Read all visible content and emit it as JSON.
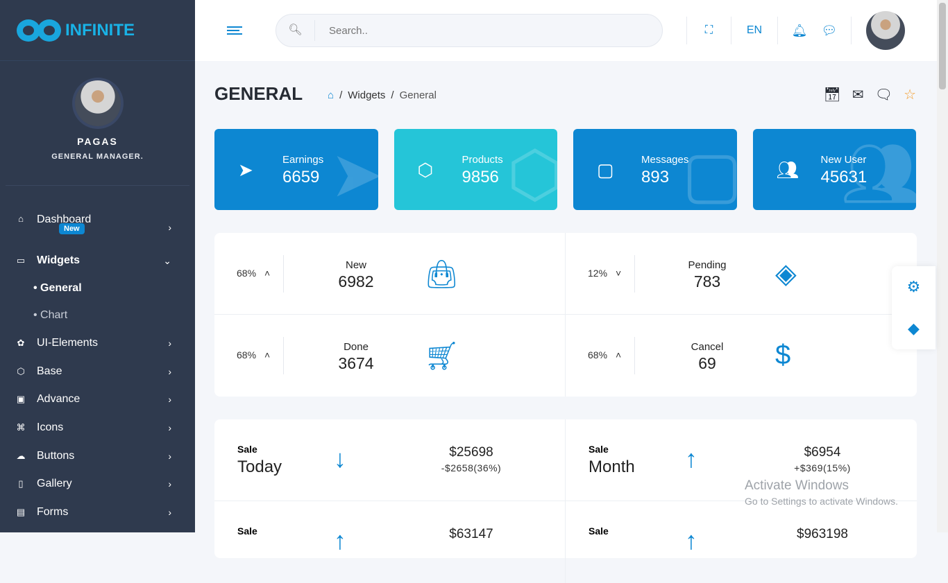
{
  "brand": {
    "name": "INFINITE"
  },
  "profile": {
    "name": "PAGAS",
    "role": "GENERAL MANAGER."
  },
  "sidebar": {
    "items": [
      {
        "label": "Dashboard",
        "icon": "home-icon",
        "badge": "New"
      },
      {
        "label": "Widgets",
        "icon": "monitor-icon",
        "expanded": true,
        "children": [
          {
            "label": "• General"
          },
          {
            "label": "• Chart"
          }
        ]
      },
      {
        "label": "UI-Elements",
        "icon": "flower-icon"
      },
      {
        "label": "Base",
        "icon": "box-icon"
      },
      {
        "label": "Advance",
        "icon": "folder-plus-icon"
      },
      {
        "label": "Icons",
        "icon": "command-icon"
      },
      {
        "label": "Buttons",
        "icon": "cloud-icon"
      },
      {
        "label": "Gallery",
        "icon": "book-icon"
      },
      {
        "label": "Forms",
        "icon": "file-icon"
      }
    ]
  },
  "header": {
    "search_placeholder": "Search..",
    "language": "EN"
  },
  "page": {
    "title": "GENERAL",
    "breadcrumb": [
      "Widgets",
      "General"
    ]
  },
  "cards": [
    {
      "label": "Earnings",
      "value": "6659"
    },
    {
      "label": "Products",
      "value": "9856"
    },
    {
      "label": "Messages",
      "value": "893"
    },
    {
      "label": "New User",
      "value": "45631"
    }
  ],
  "stats": [
    {
      "pct": "68%",
      "dir": "up",
      "label": "New",
      "value": "6982"
    },
    {
      "pct": "12%",
      "dir": "down",
      "label": "Pending",
      "value": "783"
    },
    {
      "pct": "68%",
      "dir": "up",
      "label": "Done",
      "value": "3674"
    },
    {
      "pct": "68%",
      "dir": "up",
      "label": "Cancel",
      "value": "69"
    }
  ],
  "sales": [
    {
      "label": "Sale",
      "period": "Today",
      "amount": "$25698",
      "change": "-$2658(36%)",
      "dir": "down"
    },
    {
      "label": "Sale",
      "period": "Month",
      "amount": "$6954",
      "change": "+$369(15%)",
      "dir": "up"
    },
    {
      "label": "Sale",
      "period": "",
      "amount": "$63147",
      "change": "",
      "dir": "up"
    },
    {
      "label": "Sale",
      "period": "",
      "amount": "$963198",
      "change": "",
      "dir": "up"
    }
  ],
  "watermark": {
    "line1": "Activate Windows",
    "line2": "Go to Settings to activate Windows."
  },
  "colors": {
    "sidebar": "#2f3a4e",
    "primary": "#0d87d2",
    "cyan": "#25c5d8"
  }
}
